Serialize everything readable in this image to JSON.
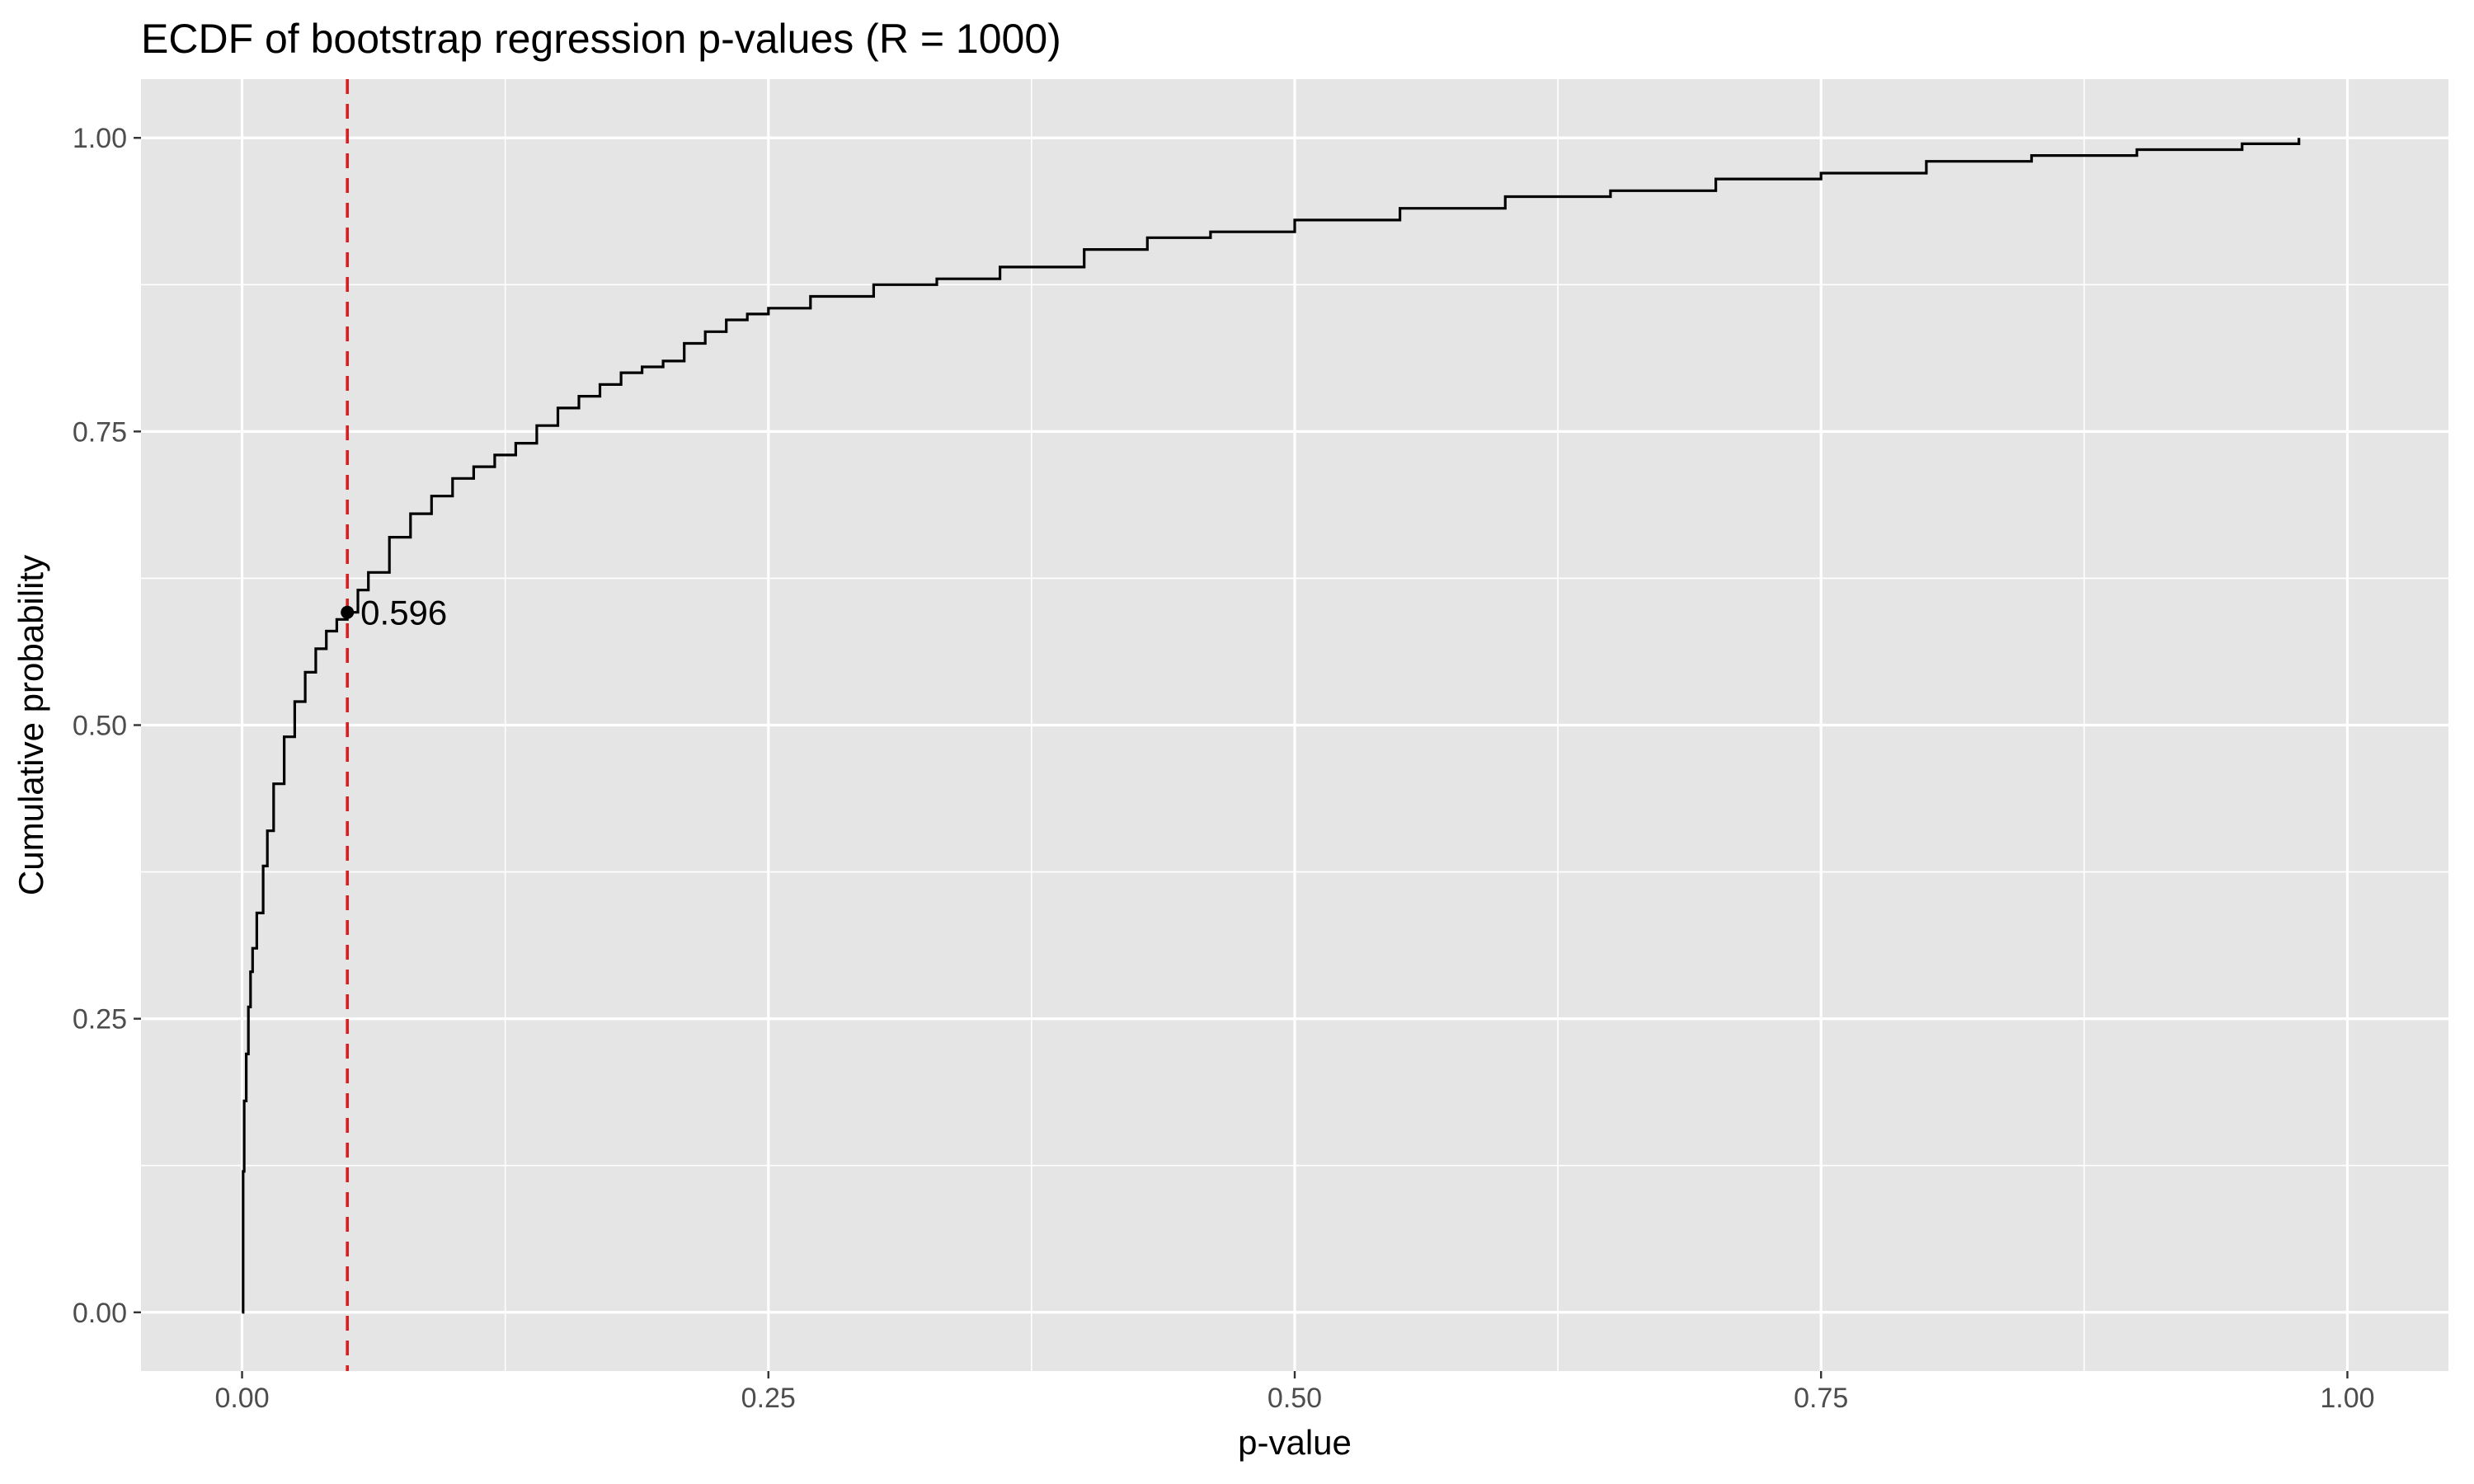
{
  "chart_data": {
    "type": "line",
    "title": "ECDF of bootstrap regression p-values (R = 1000)",
    "xlabel": "p-value",
    "ylabel": "Cumulative probability",
    "xlim": [
      -0.048,
      1.048
    ],
    "ylim": [
      -0.05,
      1.05
    ],
    "x_ticks": [
      0,
      0.25,
      0.5,
      0.75,
      1
    ],
    "x_tick_labels": [
      "0.00",
      "0.25",
      "0.50",
      "0.75",
      "1.00"
    ],
    "y_ticks": [
      0,
      0.25,
      0.5,
      0.75,
      1
    ],
    "y_tick_labels": [
      "0.00",
      "0.25",
      "0.50",
      "0.75",
      "1.00"
    ],
    "grid": true,
    "background": "#e5e5e5",
    "gridline_color": "#ffffff",
    "series": [
      {
        "color": "#000000",
        "x": [
          0.0,
          0.0005,
          0.001,
          0.002,
          0.003,
          0.004,
          0.005,
          0.007,
          0.01,
          0.012,
          0.015,
          0.02,
          0.025,
          0.03,
          0.035,
          0.04,
          0.045,
          0.05,
          0.055,
          0.06,
          0.07,
          0.08,
          0.09,
          0.1,
          0.11,
          0.12,
          0.13,
          0.14,
          0.15,
          0.16,
          0.17,
          0.18,
          0.19,
          0.2,
          0.21,
          0.22,
          0.23,
          0.24,
          0.25,
          0.27,
          0.3,
          0.33,
          0.36,
          0.4,
          0.43,
          0.46,
          0.5,
          0.55,
          0.6,
          0.65,
          0.7,
          0.75,
          0.8,
          0.85,
          0.9,
          0.95,
          0.977
        ],
        "y": [
          0.0,
          0.12,
          0.18,
          0.22,
          0.26,
          0.29,
          0.31,
          0.34,
          0.38,
          0.41,
          0.45,
          0.49,
          0.52,
          0.545,
          0.565,
          0.58,
          0.59,
          0.596,
          0.615,
          0.63,
          0.66,
          0.68,
          0.695,
          0.71,
          0.72,
          0.73,
          0.74,
          0.755,
          0.77,
          0.78,
          0.79,
          0.8,
          0.805,
          0.81,
          0.825,
          0.835,
          0.845,
          0.85,
          0.855,
          0.865,
          0.875,
          0.88,
          0.89,
          0.905,
          0.915,
          0.92,
          0.93,
          0.94,
          0.95,
          0.955,
          0.965,
          0.97,
          0.98,
          0.985,
          0.99,
          0.995,
          1.0
        ]
      }
    ],
    "vline": {
      "x": 0.05,
      "color": "#dd1c1c",
      "linetype": "dashed"
    },
    "annotations": [
      {
        "x": 0.05,
        "y": 0.596,
        "text": "0.596"
      }
    ]
  }
}
